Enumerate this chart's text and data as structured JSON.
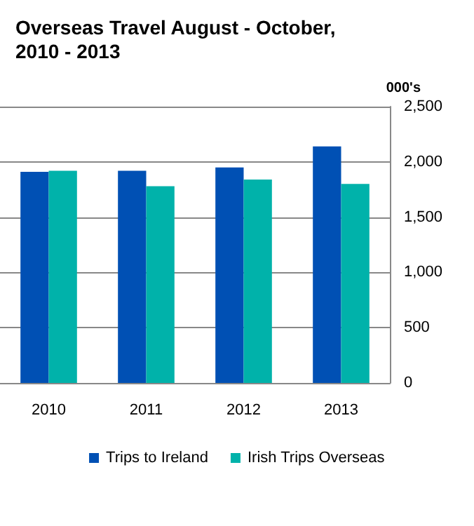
{
  "chart_data": {
    "type": "bar",
    "title": "Overseas Travel August - October,\n2010 - 2013",
    "ylabel": "000's",
    "categories": [
      "2010",
      "2011",
      "2012",
      "2013"
    ],
    "series": [
      {
        "name": "Trips to Ireland",
        "color": "#0050b4",
        "values": [
          1910,
          1920,
          1950,
          2140
        ]
      },
      {
        "name": "Irish Trips Overseas",
        "color": "#00b2aa",
        "values": [
          1920,
          1780,
          1840,
          1800
        ]
      }
    ],
    "ylim": [
      0,
      2500
    ],
    "yticks": [
      0,
      500,
      {
        "value": 1000,
        "label": "1,000"
      },
      {
        "value": 1500,
        "label": "1,500"
      },
      {
        "value": 2000,
        "label": "2,000"
      },
      {
        "value": 2500,
        "label": "2,500"
      }
    ],
    "grid": "y",
    "legend": "bottom"
  }
}
